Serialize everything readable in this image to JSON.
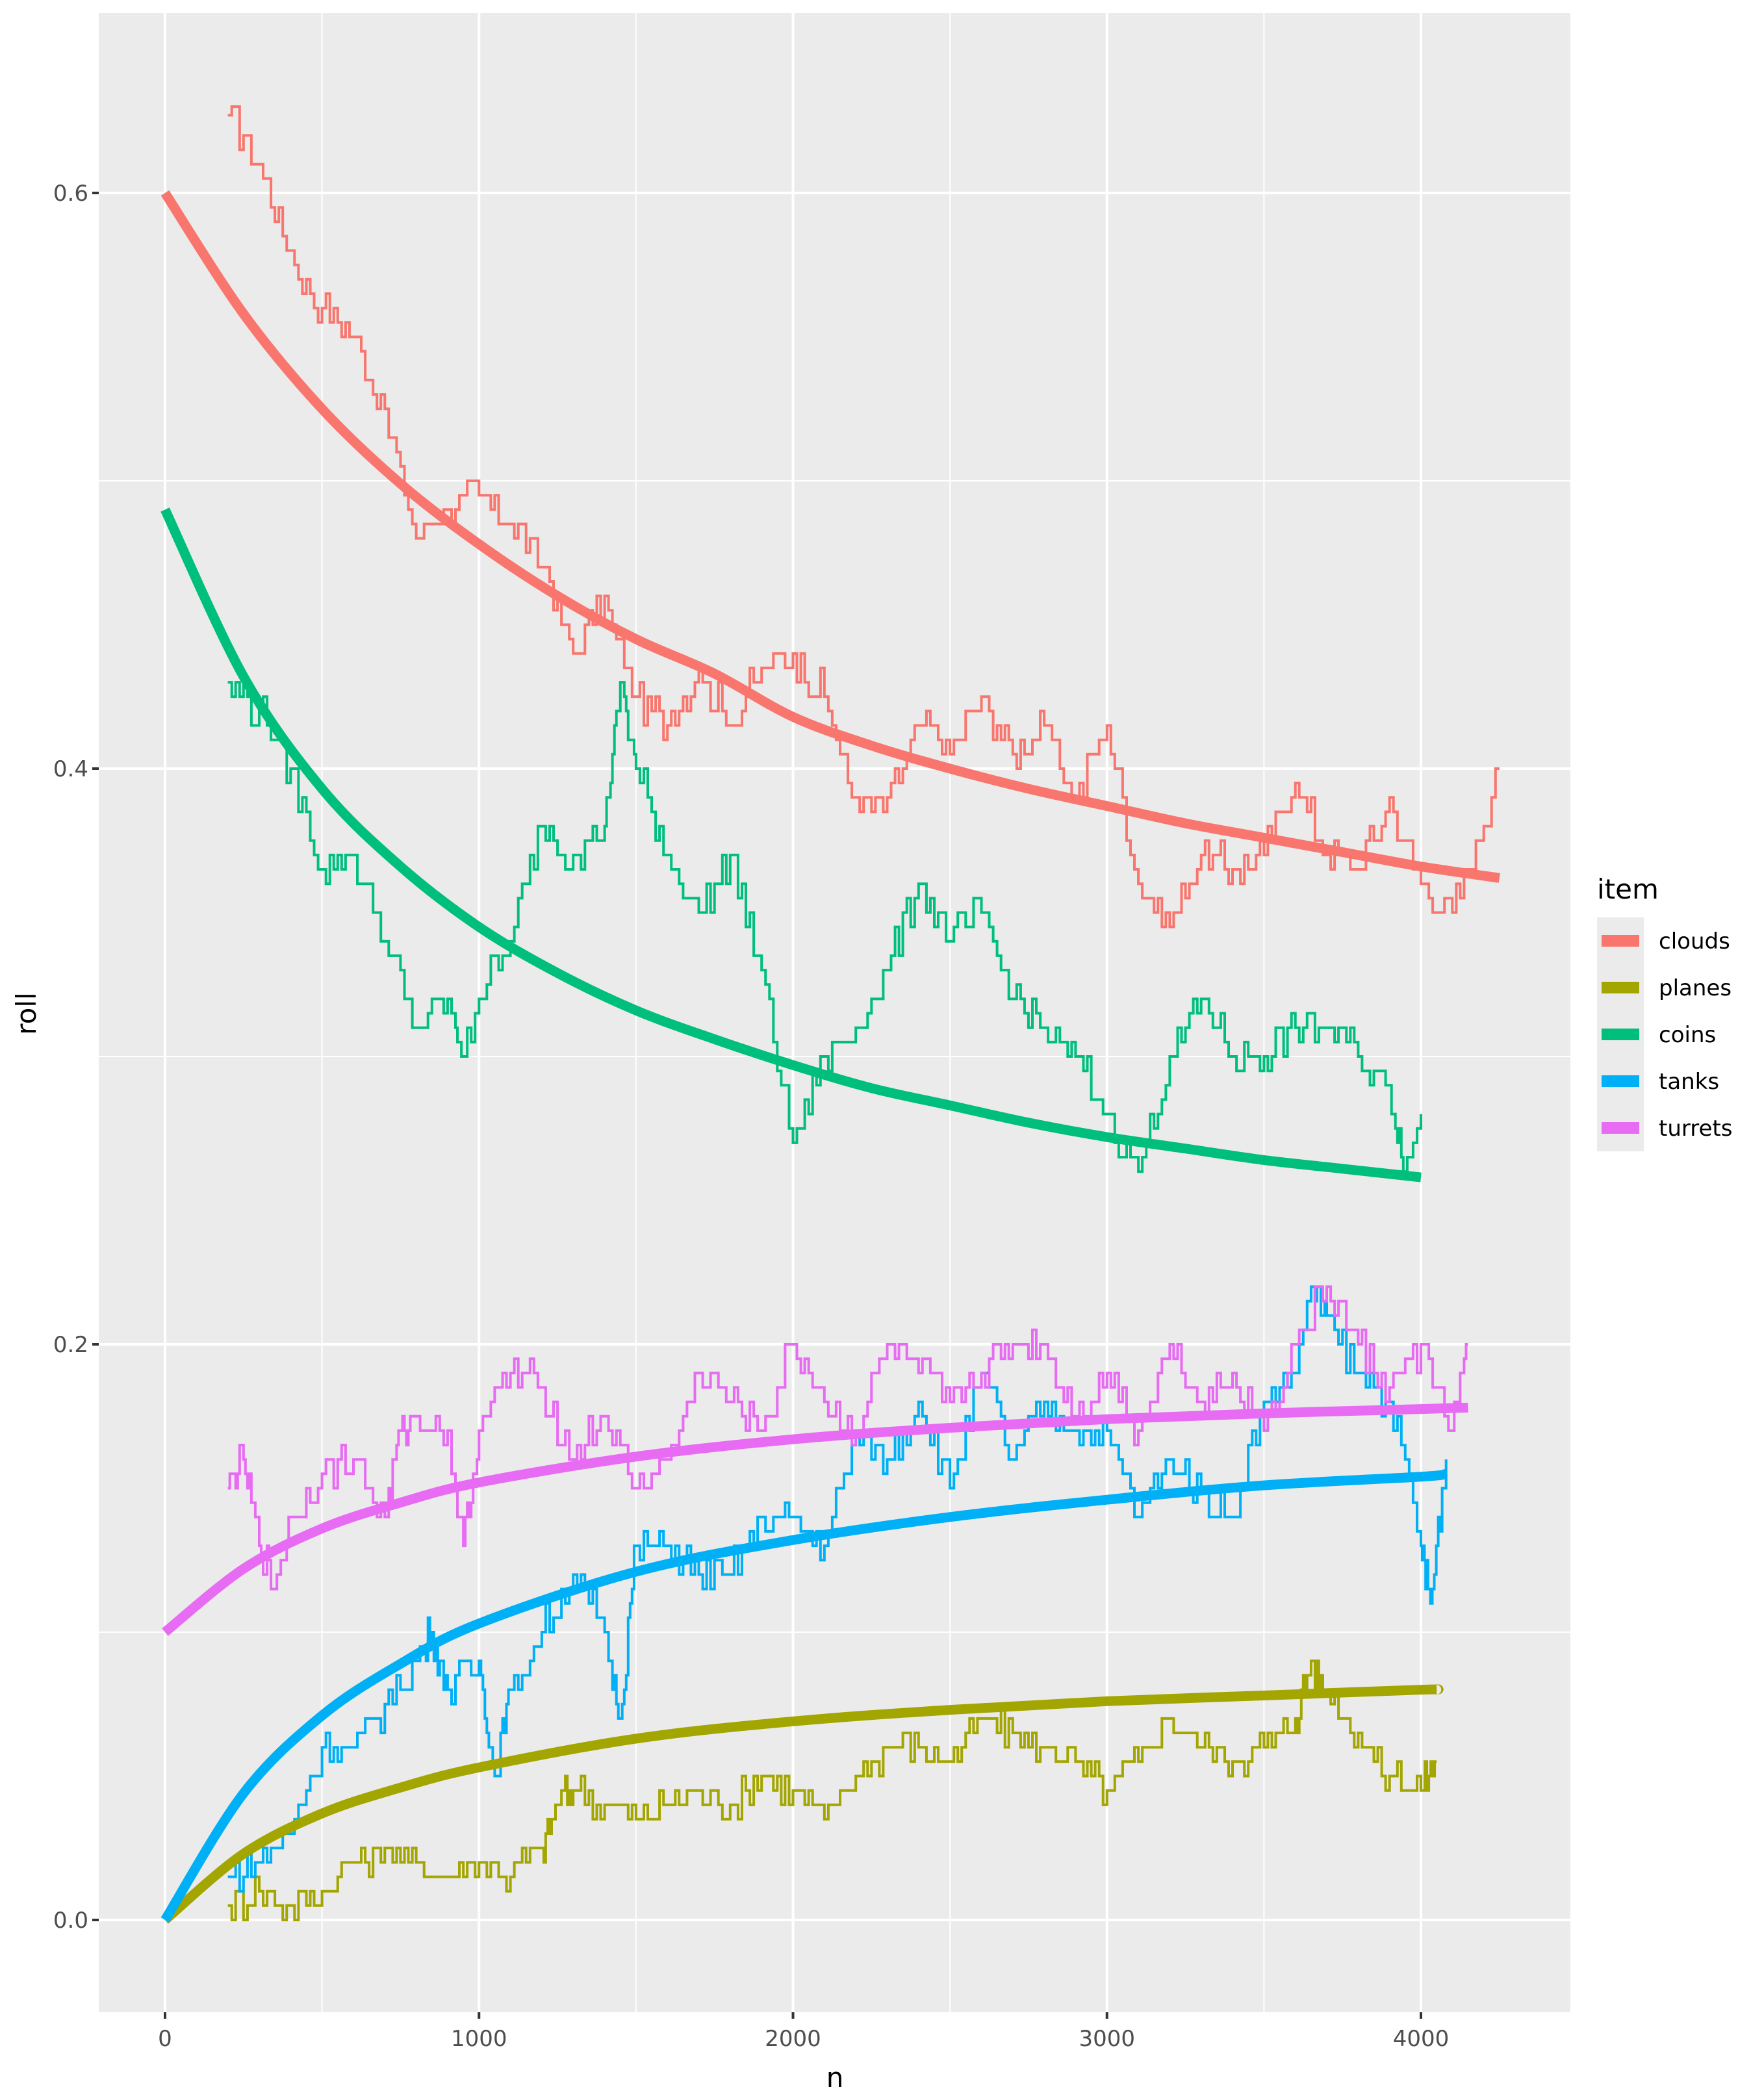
{
  "chart_data": {
    "type": "line",
    "title": "",
    "xlabel": "n",
    "ylabel": "roll",
    "xlim": [
      -210,
      4480
    ],
    "ylim": [
      -0.032,
      0.663
    ],
    "x_ticks": [
      0,
      1000,
      2000,
      3000,
      4000
    ],
    "x_tick_labels": [
      "0",
      "1000",
      "2000",
      "3000",
      "4000"
    ],
    "y_ticks": [
      0.0,
      0.2,
      0.4,
      0.6
    ],
    "y_tick_labels": [
      "0.0",
      "0.2",
      "0.4",
      "0.6"
    ],
    "grid": true,
    "legend": {
      "title": "item",
      "placement": "right"
    },
    "series": [
      {
        "name": "clouds",
        "color": "#F8766D",
        "trend": {
          "x": [
            0,
            250,
            500,
            750,
            1000,
            1250,
            1500,
            1750,
            2000,
            2250,
            2500,
            2750,
            3000,
            3250,
            3500,
            3750,
            4000,
            4250
          ],
          "y": [
            0.6,
            0.558,
            0.525,
            0.499,
            0.478,
            0.46,
            0.445,
            0.433,
            0.418,
            0.408,
            0.4,
            0.393,
            0.387,
            0.381,
            0.376,
            0.371,
            0.366,
            0.362
          ]
        },
        "rolling": {
          "x": [
            200,
            300,
            400,
            500,
            600,
            700,
            800,
            900,
            1000,
            1100,
            1200,
            1300,
            1400,
            1500,
            1600,
            1700,
            1800,
            1900,
            2000,
            2100,
            2200,
            2300,
            2400,
            2500,
            2600,
            2700,
            2800,
            2900,
            3000,
            3100,
            3200,
            3300,
            3400,
            3500,
            3600,
            3700,
            3800,
            3900,
            4000,
            4100,
            4200,
            4250
          ],
          "y": [
            0.627,
            0.611,
            0.578,
            0.56,
            0.55,
            0.523,
            0.48,
            0.49,
            0.495,
            0.486,
            0.472,
            0.44,
            0.458,
            0.425,
            0.416,
            0.434,
            0.416,
            0.434,
            0.44,
            0.425,
            0.388,
            0.388,
            0.416,
            0.406,
            0.425,
            0.406,
            0.416,
            0.388,
            0.416,
            0.36,
            0.346,
            0.37,
            0.365,
            0.37,
            0.397,
            0.37,
            0.365,
            0.388,
            0.36,
            0.35,
            0.38,
            0.4
          ]
        }
      },
      {
        "name": "planes",
        "color": "#A3A500",
        "trend": {
          "x": [
            0,
            250,
            500,
            750,
            1000,
            1500,
            2000,
            2500,
            3000,
            3500,
            4000,
            4050
          ],
          "y": [
            0,
            0.023,
            0.037,
            0.046,
            0.053,
            0.063,
            0.069,
            0.073,
            0.076,
            0.078,
            0.08,
            0.08
          ]
        },
        "rolling": {
          "x": [
            200,
            300,
            400,
            500,
            600,
            700,
            800,
            900,
            1000,
            1100,
            1200,
            1250,
            1300,
            1400,
            1500,
            1600,
            1700,
            1800,
            1900,
            2000,
            2100,
            2200,
            2300,
            2400,
            2500,
            2600,
            2700,
            2800,
            2900,
            3000,
            3100,
            3200,
            3300,
            3400,
            3500,
            3600,
            3650,
            3700,
            3800,
            3900,
            4000,
            4050
          ],
          "y": [
            0.005,
            0.01,
            0.005,
            0.01,
            0.02,
            0.025,
            0.02,
            0.015,
            0.02,
            0.015,
            0.025,
            0.04,
            0.045,
            0.04,
            0.035,
            0.04,
            0.045,
            0.04,
            0.05,
            0.045,
            0.035,
            0.05,
            0.06,
            0.06,
            0.055,
            0.07,
            0.065,
            0.06,
            0.055,
            0.045,
            0.055,
            0.07,
            0.06,
            0.055,
            0.06,
            0.07,
            0.09,
            0.08,
            0.065,
            0.05,
            0.045,
            0.055
          ]
        }
      },
      {
        "name": "coins",
        "color": "#00BF7D",
        "trend": {
          "x": [
            0,
            250,
            500,
            750,
            1000,
            1250,
            1500,
            1750,
            2000,
            2250,
            2500,
            2750,
            3000,
            3250,
            3500,
            3750,
            4000
          ],
          "y": [
            0.49,
            0.432,
            0.393,
            0.366,
            0.345,
            0.329,
            0.316,
            0.306,
            0.297,
            0.289,
            0.283,
            0.277,
            0.272,
            0.268,
            0.264,
            0.261,
            0.258
          ]
        },
        "rolling": {
          "x": [
            200,
            300,
            400,
            500,
            600,
            700,
            800,
            900,
            950,
            1000,
            1100,
            1200,
            1300,
            1400,
            1450,
            1500,
            1600,
            1700,
            1800,
            1900,
            2000,
            2100,
            2200,
            2300,
            2400,
            2500,
            2600,
            2700,
            2800,
            2900,
            3000,
            3100,
            3200,
            3300,
            3400,
            3500,
            3600,
            3700,
            3800,
            3900,
            3950,
            4000
          ],
          "y": [
            0.43,
            0.42,
            0.4,
            0.365,
            0.37,
            0.34,
            0.31,
            0.32,
            0.3,
            0.32,
            0.34,
            0.38,
            0.37,
            0.38,
            0.43,
            0.4,
            0.37,
            0.35,
            0.37,
            0.33,
            0.27,
            0.3,
            0.31,
            0.33,
            0.36,
            0.34,
            0.35,
            0.32,
            0.31,
            0.3,
            0.28,
            0.26,
            0.3,
            0.32,
            0.3,
            0.3,
            0.31,
            0.31,
            0.3,
            0.29,
            0.26,
            0.28
          ]
        }
      },
      {
        "name": "tanks",
        "color": "#00B0F6",
        "trend": {
          "x": [
            0,
            250,
            500,
            750,
            1000,
            1500,
            2000,
            2500,
            3000,
            3500,
            4000,
            4080
          ],
          "y": [
            0,
            0.044,
            0.071,
            0.089,
            0.103,
            0.121,
            0.132,
            0.14,
            0.146,
            0.151,
            0.154,
            0.155
          ]
        },
        "rolling": {
          "x": [
            200,
            300,
            400,
            500,
            600,
            700,
            800,
            850,
            900,
            1000,
            1050,
            1100,
            1200,
            1300,
            1400,
            1450,
            1500,
            1600,
            1700,
            1800,
            1900,
            2000,
            2100,
            2200,
            2300,
            2400,
            2500,
            2600,
            2700,
            2800,
            2900,
            3000,
            3100,
            3200,
            3300,
            3400,
            3500,
            3600,
            3650,
            3700,
            3800,
            3900,
            4000,
            4030,
            4080
          ],
          "y": [
            0.015,
            0.02,
            0.03,
            0.06,
            0.06,
            0.075,
            0.09,
            0.1,
            0.08,
            0.09,
            0.05,
            0.08,
            0.1,
            0.12,
            0.1,
            0.07,
            0.13,
            0.13,
            0.12,
            0.12,
            0.14,
            0.14,
            0.13,
            0.17,
            0.16,
            0.18,
            0.15,
            0.19,
            0.16,
            0.18,
            0.17,
            0.17,
            0.14,
            0.16,
            0.15,
            0.14,
            0.18,
            0.19,
            0.22,
            0.21,
            0.19,
            0.18,
            0.13,
            0.11,
            0.16
          ]
        }
      },
      {
        "name": "turrets",
        "color": "#E76BF3",
        "trend": {
          "x": [
            0,
            250,
            500,
            750,
            1000,
            1500,
            2000,
            2500,
            3000,
            3500,
            4000,
            4150
          ],
          "y": [
            0.1,
            0.122,
            0.136,
            0.145,
            0.152,
            0.161,
            0.167,
            0.171,
            0.174,
            0.176,
            0.1775,
            0.178
          ]
        },
        "rolling": {
          "x": [
            200,
            250,
            300,
            350,
            400,
            500,
            600,
            700,
            750,
            800,
            900,
            950,
            1000,
            1100,
            1200,
            1300,
            1400,
            1500,
            1600,
            1700,
            1800,
            1900,
            2000,
            2100,
            2200,
            2300,
            2400,
            2500,
            2600,
            2700,
            2800,
            2900,
            3000,
            3100,
            3200,
            3300,
            3400,
            3500,
            3600,
            3700,
            3800,
            3900,
            4000,
            4100,
            4150
          ],
          "y": [
            0.15,
            0.16,
            0.13,
            0.115,
            0.14,
            0.155,
            0.16,
            0.14,
            0.17,
            0.175,
            0.17,
            0.13,
            0.17,
            0.19,
            0.185,
            0.16,
            0.175,
            0.15,
            0.16,
            0.19,
            0.18,
            0.17,
            0.2,
            0.18,
            0.17,
            0.2,
            0.19,
            0.18,
            0.19,
            0.2,
            0.2,
            0.175,
            0.19,
            0.17,
            0.2,
            0.18,
            0.19,
            0.17,
            0.2,
            0.22,
            0.2,
            0.185,
            0.2,
            0.17,
            0.2
          ]
        }
      }
    ]
  }
}
